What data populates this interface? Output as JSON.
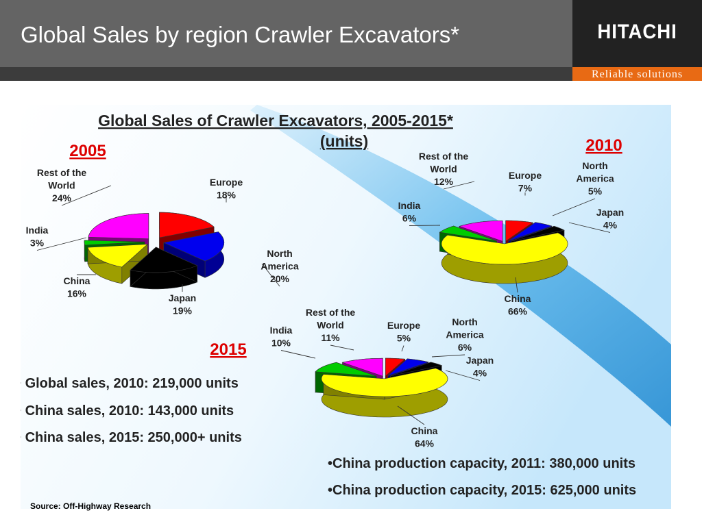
{
  "header": {
    "title": "Global Sales by region Crawler Excavators*",
    "brand": "HITACHI",
    "tagline": "Reliable solutions",
    "colors": {
      "header_bg": "#646464",
      "brand_bg": "#222222",
      "tagline_bg": "#e86a14"
    }
  },
  "chart_title": {
    "line1": "Global Sales of Crawler Excavators, 2005-2015*",
    "line2": "(units)"
  },
  "chart_data": [
    {
      "type": "pie",
      "title": "2005",
      "unit": "%",
      "slices": [
        {
          "label": [
            "Europe"
          ],
          "value": 18,
          "color": "#ff0000"
        },
        {
          "label": [
            "North",
            "America"
          ],
          "value": 20,
          "color": "#0000ee"
        },
        {
          "label": [
            "Japan"
          ],
          "value": 19,
          "color": "#000000"
        },
        {
          "label": [
            "China"
          ],
          "value": 16,
          "color": "#ffff00"
        },
        {
          "label": [
            "India"
          ],
          "value": 3,
          "color": "#00cc00"
        },
        {
          "label": [
            "Rest of the",
            "World"
          ],
          "value": 24,
          "color": "#ff00ff"
        }
      ]
    },
    {
      "type": "pie",
      "title": "2010",
      "unit": "%",
      "slices": [
        {
          "label": [
            "Europe"
          ],
          "value": 7,
          "color": "#ff0000"
        },
        {
          "label": [
            "North",
            "America"
          ],
          "value": 5,
          "color": "#0000ee"
        },
        {
          "label": [
            "Japan"
          ],
          "value": 4,
          "color": "#000000"
        },
        {
          "label": [
            "China"
          ],
          "value": 66,
          "color": "#ffff00"
        },
        {
          "label": [
            "India"
          ],
          "value": 6,
          "color": "#00cc00"
        },
        {
          "label": [
            "Rest of the",
            "World"
          ],
          "value": 12,
          "color": "#ff00ff"
        }
      ]
    },
    {
      "type": "pie",
      "title": "2015",
      "unit": "%",
      "slices": [
        {
          "label": [
            "Europe"
          ],
          "value": 5,
          "color": "#ff0000"
        },
        {
          "label": [
            "North",
            "America"
          ],
          "value": 6,
          "color": "#0000ee"
        },
        {
          "label": [
            "Japan"
          ],
          "value": 4,
          "color": "#000000"
        },
        {
          "label": [
            "China"
          ],
          "value": 64,
          "color": "#ffff00"
        },
        {
          "label": [
            "India"
          ],
          "value": 10,
          "color": "#00cc00"
        },
        {
          "label": [
            "Rest of the",
            "World"
          ],
          "value": 11,
          "color": "#ff00ff"
        }
      ]
    }
  ],
  "bullets": [
    "Global sales, 2010: 219,000 units",
    "China sales, 2010: 143,000 units",
    "China sales, 2015: 250,000+ units"
  ],
  "capacity_notes": [
    "China production capacity, 2011: 380,000 units",
    "China production capacity, 2015: 625,000 units"
  ],
  "source": "Source: Off-Highway Research"
}
